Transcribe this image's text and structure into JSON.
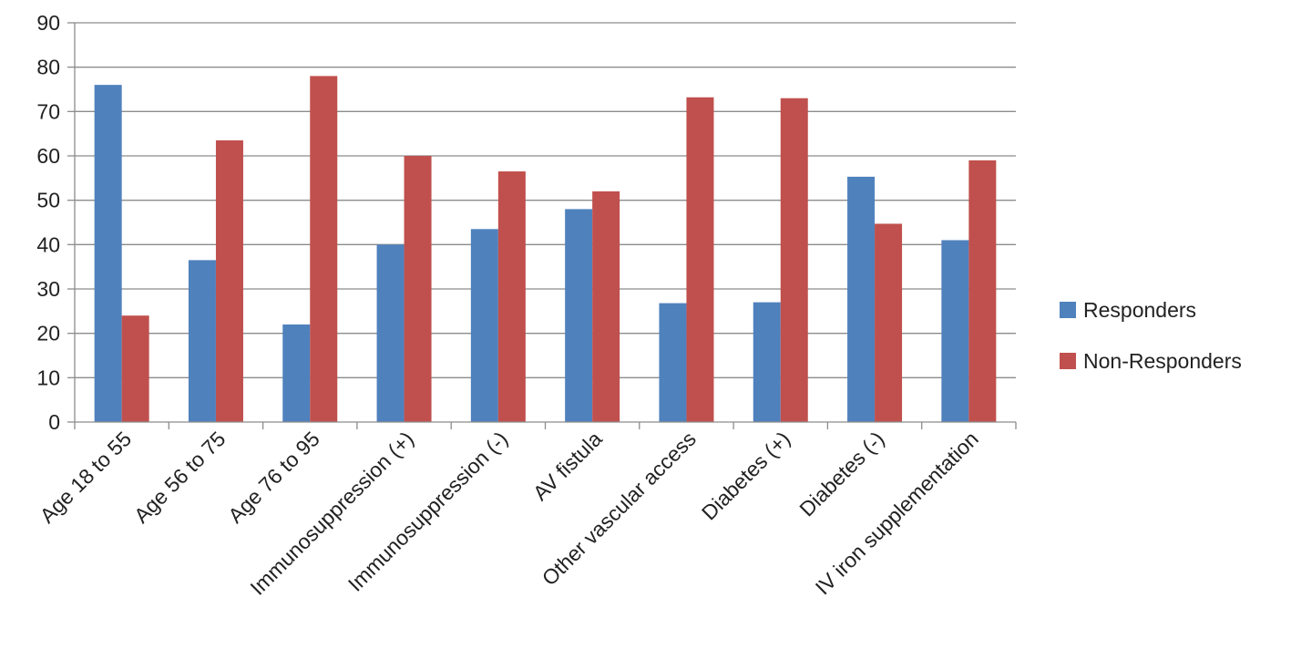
{
  "chart_data": {
    "type": "bar",
    "title": "",
    "xlabel": "",
    "ylabel": "",
    "ylim": [
      0,
      90
    ],
    "ytick_step": 10,
    "grid": true,
    "legend_position": "right",
    "categories": [
      "Age 18 to 55",
      "Age 56 to 75",
      "Age 76 to 95",
      "Immunosuppression (+)",
      "Immunosuppression (-)",
      "AV fistula",
      "Other vascular access",
      "Diabetes (+)",
      "Diabetes (-)",
      "IV iron supplementation"
    ],
    "series": [
      {
        "name": "Responders",
        "color": "#4f81bd",
        "values": [
          76,
          36.5,
          22,
          40,
          43.5,
          48,
          26.8,
          27,
          55.3,
          41
        ]
      },
      {
        "name": "Non-Responders",
        "color": "#c0504d",
        "values": [
          24,
          63.5,
          78,
          60,
          56.5,
          52,
          73.2,
          73,
          44.7,
          59
        ]
      }
    ]
  }
}
